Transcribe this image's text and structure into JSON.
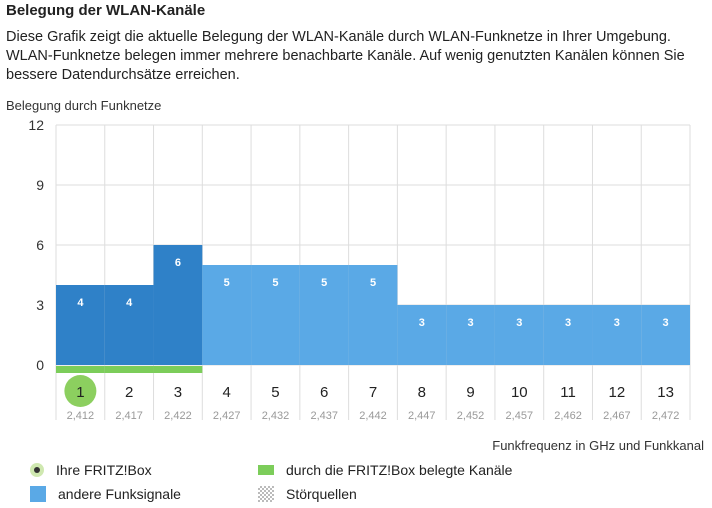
{
  "header": {
    "title": "Belegung der WLAN-Kanäle",
    "description": "Diese Grafik zeigt die aktuelle Belegung der WLAN-Kanäle durch WLAN-Funknetze in Ihrer Umgebung. WLAN-Funknetze belegen immer mehrere benachbarte Kanäle. Auf wenig genutzten Kanälen können Sie bessere Datendurchsätze erreichen."
  },
  "chart_data": {
    "type": "bar",
    "ylabel": "Belegung durch Funknetze",
    "xlabel": "Funkfrequenz in GHz und Funkkanal",
    "ylim": [
      0,
      12
    ],
    "yticks": [
      0,
      3,
      6,
      9,
      12
    ],
    "grid": true,
    "categories": [
      "1",
      "2",
      "3",
      "4",
      "5",
      "6",
      "7",
      "8",
      "9",
      "10",
      "11",
      "12",
      "13"
    ],
    "frequencies": [
      "2,412",
      "2,417",
      "2,422",
      "2,427",
      "2,432",
      "2,437",
      "2,442",
      "2,447",
      "2,452",
      "2,457",
      "2,462",
      "2,467",
      "2,472"
    ],
    "values": [
      4,
      4,
      6,
      5,
      5,
      5,
      5,
      3,
      3,
      3,
      3,
      3,
      3
    ],
    "own_channels_used": [
      "1",
      "2",
      "3"
    ],
    "fritzbox_channel": "1",
    "colors": {
      "own_bar": "#2f81c8",
      "other_bar": "#5aa9e6",
      "used_strip": "#7ccd5a",
      "fritzbox_marker": "#8ccf5f",
      "grid": "#dddddd"
    }
  },
  "legend": {
    "fritzbox": "Ihre FRITZ!Box",
    "used_channels": "durch die FRITZ!Box belegte Kanäle",
    "other_signals": "andere Funksignale",
    "interference": "Störquellen"
  }
}
